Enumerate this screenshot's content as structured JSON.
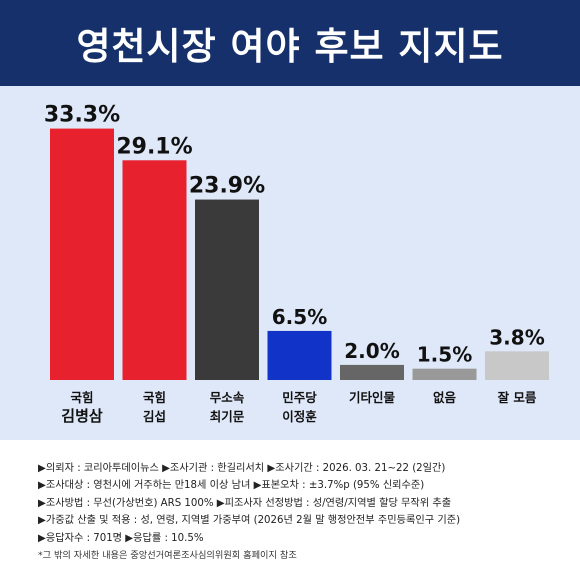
{
  "header": {
    "title": "영천시장 여야 후보 지지도"
  },
  "chart_data": {
    "type": "bar",
    "title": "영천시장 여야 후보 지지도",
    "xlabel": "",
    "ylabel": "",
    "ylim": [
      0,
      35
    ],
    "grid": false,
    "legend": "none",
    "categories": [
      [
        "국힘",
        "김병삼"
      ],
      [
        "국힘",
        "김섭"
      ],
      [
        "무소속",
        "최기문"
      ],
      [
        "민주당",
        "이정훈"
      ],
      [
        "기타인물"
      ],
      [
        "없음"
      ],
      [
        "잘 모름"
      ]
    ],
    "values": [
      33.3,
      29.1,
      23.9,
      6.5,
      2.0,
      1.5,
      3.8
    ],
    "value_labels": [
      "33.3%",
      "29.1%",
      "23.9%",
      "6.5%",
      "2.0%",
      "1.5%",
      "3.8%"
    ],
    "colors": [
      "#e8212e",
      "#e8212e",
      "#3a3a3a",
      "#1133c8",
      "#666666",
      "#999999",
      "#c8c8c8"
    ]
  },
  "notes": [
    "▶의뢰자 : 코리아투데이뉴스 ▶조사기관 : 한길리서치 ▶조사기간 : 2026. 03. 21~22 (2일간)",
    "▶조사대상 : 영천시에 거주하는 만18세 이상 남녀 ▶표본오차 : ±3.7%p (95% 신뢰수준)",
    "▶조사방법 : 무선(가상번호) ARS 100% ▶피조사자 선정방법 : 성/연령/지역별 할당 무작위 추출",
    "▶가중값 산출 및 적용 : 성, 연령, 지역별 가중부여 (2026년 2월 말 행정안전부 주민등록인구 기준)",
    "▶응답자수 : 701명 ▶응답률 : 10.5%"
  ],
  "footnote": "*그 밖의 자세한 내용은 중앙선거여론조사심의위원회 홈페이지 참조"
}
